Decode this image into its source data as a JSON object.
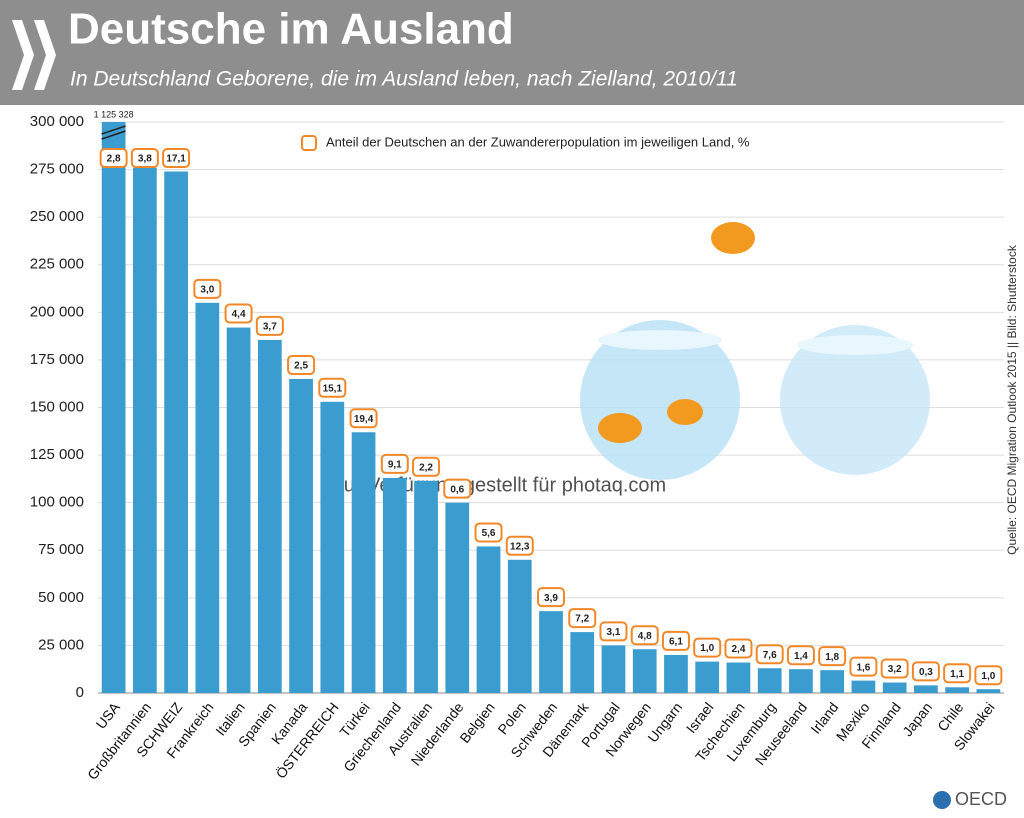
{
  "chart_data": {
    "type": "bar",
    "title": "Deutsche im Ausland",
    "subtitle": "In Deutschland Geborene, die im Ausland leben, nach Zielland, 2010/11",
    "categories": [
      "USA",
      "Großbritannien",
      "SCHWEIZ",
      "Frankreich",
      "Italien",
      "Spanien",
      "Kanada",
      "ÖSTERREICH",
      "Türkei",
      "Griechenland",
      "Australien",
      "Niederlande",
      "Belgien",
      "Polen",
      "Schweden",
      "Dänemark",
      "Portugal",
      "Norwegen",
      "Ungarn",
      "Israel",
      "Tschechien",
      "Luxemburg",
      "Neuseeland",
      "Irland",
      "Mexiko",
      "Finnland",
      "Japan",
      "Chile",
      "Slowakei"
    ],
    "values": [
      1125328,
      276000,
      274000,
      205000,
      192000,
      185500,
      165000,
      153000,
      137000,
      113000,
      111500,
      100000,
      77000,
      70000,
      43000,
      32000,
      25000,
      23000,
      20000,
      16500,
      16000,
      13000,
      12500,
      12000,
      6500,
      5500,
      4000,
      3000,
      2000
    ],
    "value_labels": [
      "1 125 328",
      null,
      null,
      null,
      null,
      null,
      null,
      null,
      null,
      null,
      null,
      null,
      null,
      null,
      null,
      null,
      null,
      null,
      null,
      null,
      null,
      null,
      null,
      null,
      null,
      null,
      null,
      null,
      null
    ],
    "color": "#3b9ccf",
    "share_series": {
      "name": "Anteil der Deutschen an der Zuwandererpopulation im jeweiligen Land, %",
      "color": "#f0882a",
      "values": [
        2.8,
        3.8,
        17.1,
        3.0,
        4.4,
        3.7,
        2.5,
        15.1,
        19.4,
        9.1,
        2.2,
        0.6,
        5.6,
        12.3,
        3.9,
        7.2,
        3.1,
        4.8,
        6.1,
        1.0,
        2.4,
        7.6,
        1.4,
        1.8,
        1.6,
        3.2,
        0.3,
        1.1,
        1.0
      ],
      "value_labels": [
        "2,8",
        "3,8",
        "17,1",
        "3,0",
        "4,4",
        "3,7",
        "2,5",
        "15,1",
        "19,4",
        "9,1",
        "2,2",
        "0,6",
        "5,6",
        "12,3",
        "3,9",
        "7,2",
        "3,1",
        "4,8",
        "6,1",
        "1,0",
        "2,4",
        "7,6",
        "1,4",
        "1,8",
        "1,6",
        "3,2",
        "0,3",
        "1,1",
        "1,0"
      ]
    },
    "ylim": [
      0,
      300000
    ],
    "yticks": [
      0,
      {
        "value": 25000,
        "label": "25 000"
      },
      {
        "value": 50000,
        "label": "50 000"
      },
      {
        "value": 75000,
        "label": "75 000"
      },
      {
        "value": 100000,
        "label": "100 000"
      },
      {
        "value": 125000,
        "label": "125 000"
      },
      {
        "value": 150000,
        "label": "150 000"
      },
      {
        "value": 175000,
        "label": "175 000"
      },
      {
        "value": 200000,
        "label": "200 000"
      },
      {
        "value": 225000,
        "label": "225 000"
      },
      {
        "value": 250000,
        "label": "250 000"
      },
      {
        "value": 275000,
        "label": "275 000"
      },
      {
        "value": 300000,
        "label": "300 000"
      }
    ],
    "grid": true,
    "source": "Quelle: OECD Migration Outlook 2015 || Bild: Shutterstock",
    "watermark": "zur Verfügung gestellt für photaq.com",
    "logo": "OECD"
  }
}
